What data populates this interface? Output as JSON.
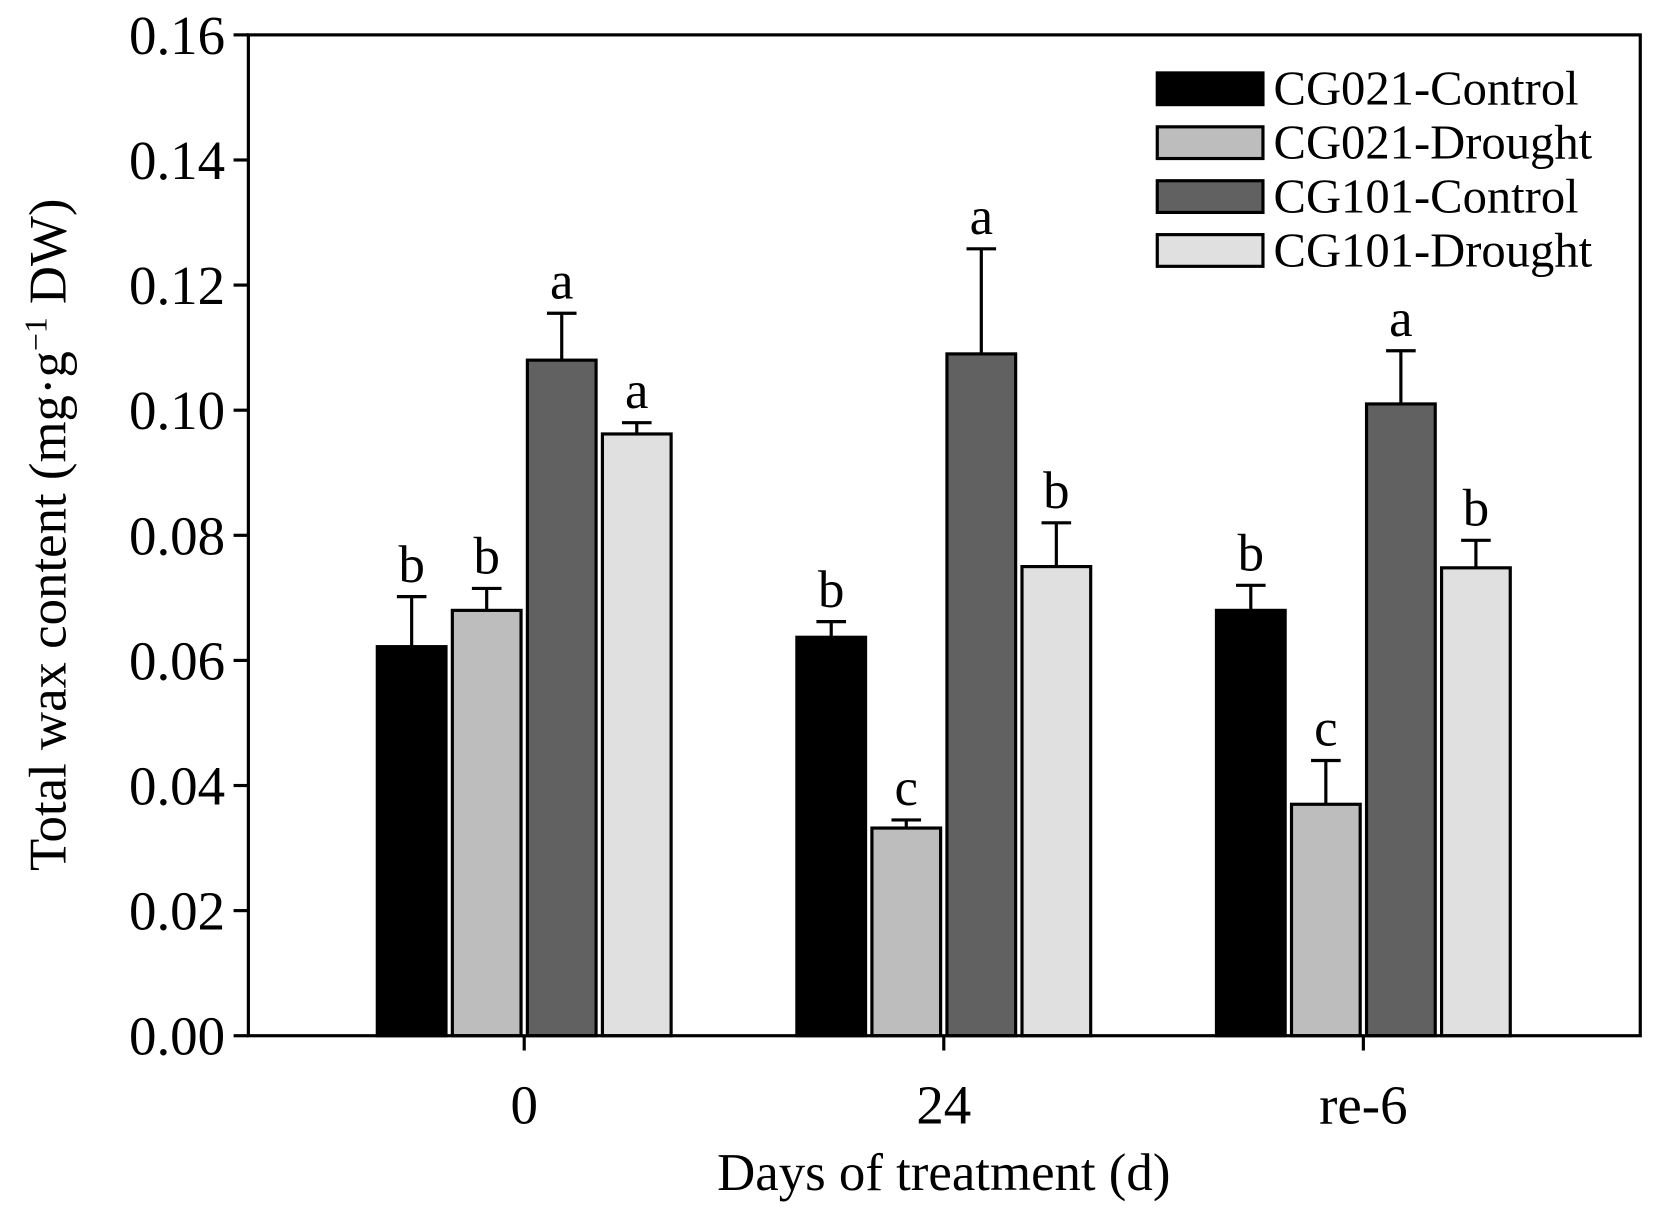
{
  "chart_data": {
    "type": "bar",
    "title": "",
    "xlabel": "Days of treatment (d)",
    "ylabel_parts": [
      "Total wax content (mg·g",
      "−1",
      " DW)"
    ],
    "ylim": [
      0,
      0.16
    ],
    "yticks": [
      "0.00",
      "0.02",
      "0.04",
      "0.06",
      "0.08",
      "0.10",
      "0.12",
      "0.14",
      "0.16"
    ],
    "categories": [
      "0",
      "24",
      "re-6"
    ],
    "legend_position": "top-right",
    "series": [
      {
        "name": "CG021-Control",
        "color": "#000000",
        "values": [
          0.0622,
          0.0637,
          0.068
        ],
        "error_upper": [
          0.0702,
          0.0662,
          0.072
        ],
        "letters": [
          "b",
          "b",
          "b"
        ]
      },
      {
        "name": "CG021-Drought",
        "color": "#bdbdbd",
        "values": [
          0.068,
          0.0332,
          0.037
        ],
        "error_upper": [
          0.0715,
          0.0345,
          0.044
        ],
        "letters": [
          "b",
          "c",
          "c"
        ]
      },
      {
        "name": "CG101-Control",
        "color": "#616161",
        "values": [
          0.108,
          0.109,
          0.101
        ],
        "error_upper": [
          0.1155,
          0.1258,
          0.1095
        ],
        "letters": [
          "a",
          "a",
          "a"
        ]
      },
      {
        "name": "CG101-Drought",
        "color": "#e0e0e0",
        "values": [
          0.0962,
          0.075,
          0.0748
        ],
        "error_upper": [
          0.098,
          0.082,
          0.0792
        ],
        "letters": [
          "a",
          "b",
          "b"
        ]
      }
    ]
  }
}
